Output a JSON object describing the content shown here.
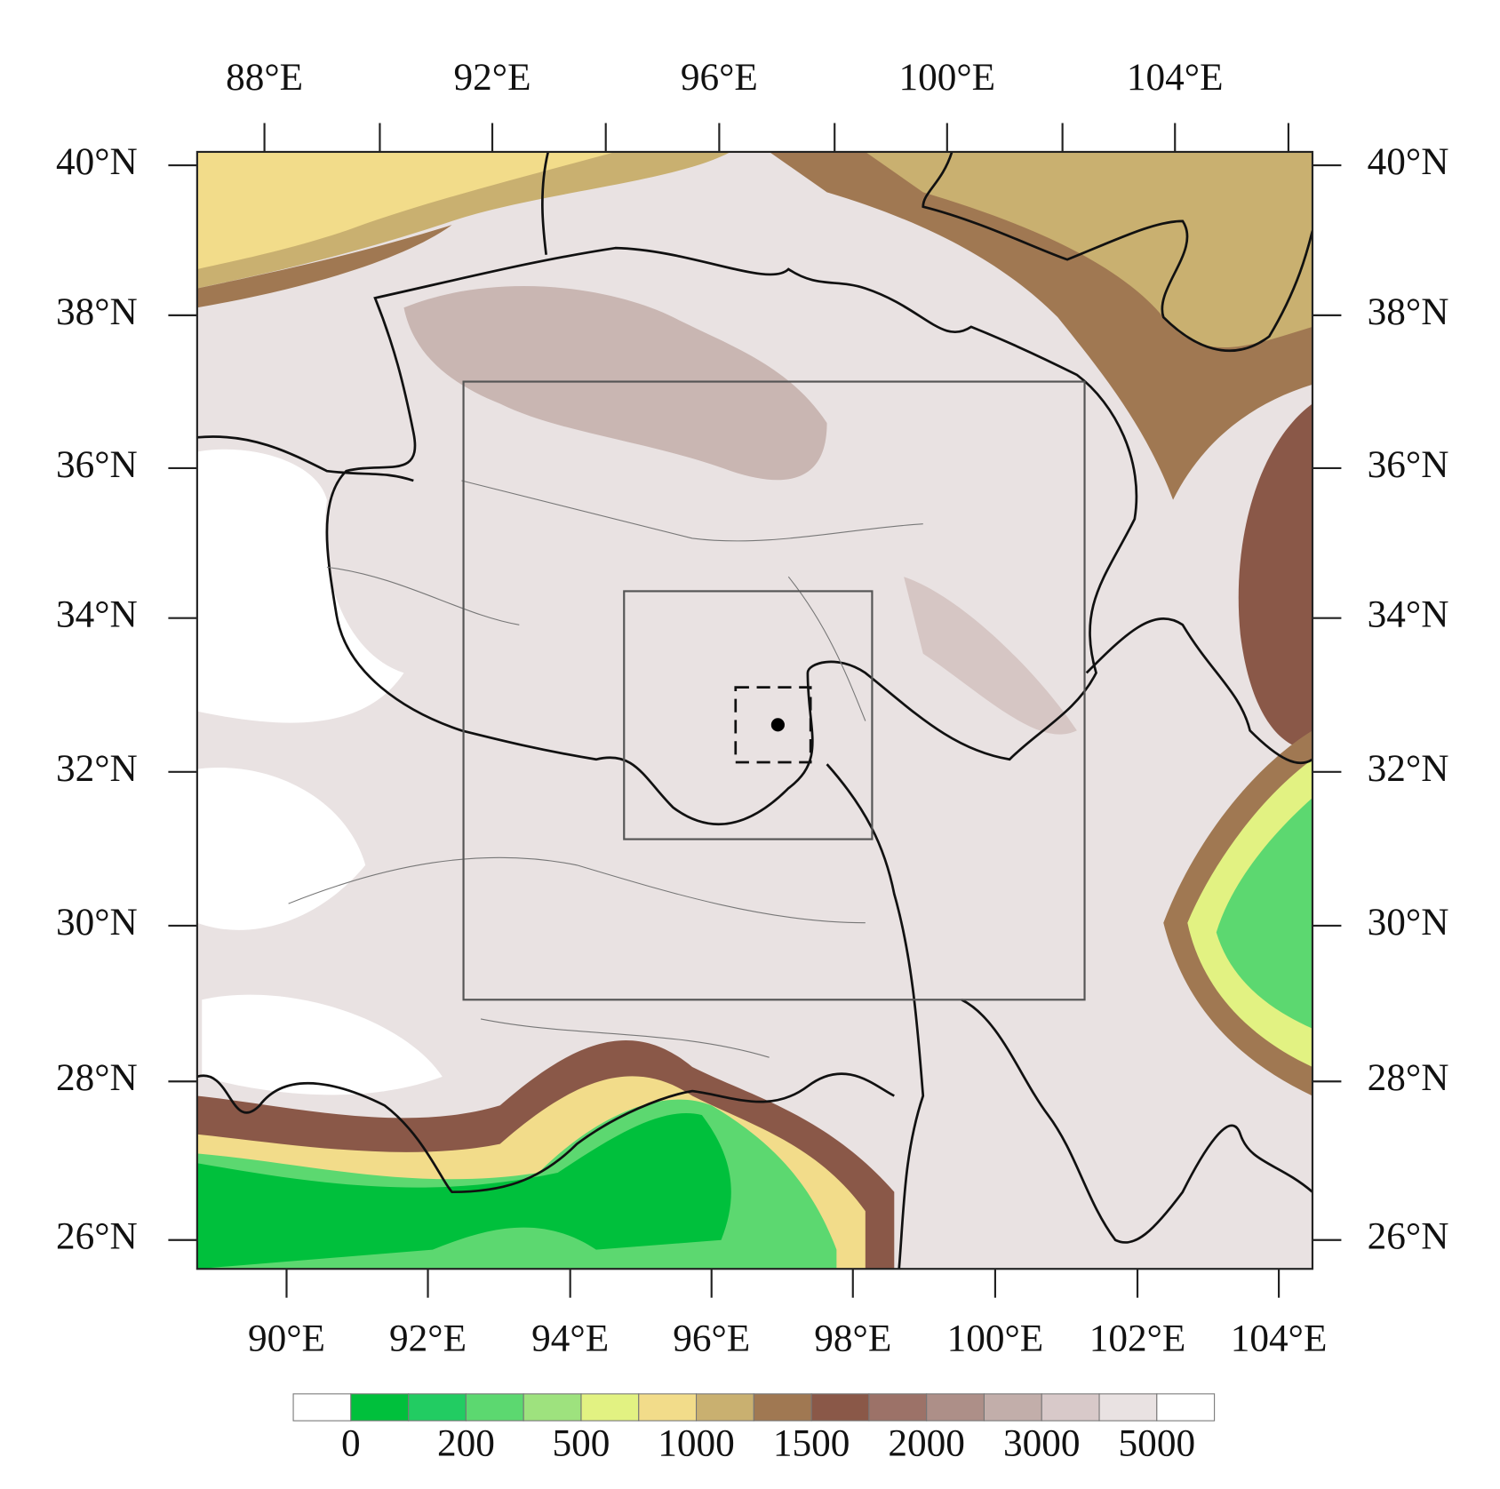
{
  "map": {
    "top_labels": [
      "88°E",
      "92°E",
      "96°E",
      "100°E",
      "104°E"
    ],
    "bottom_labels": [
      "90°E",
      "92°E",
      "94°E",
      "96°E",
      "98°E",
      "100°E",
      "102°E",
      "104°E"
    ],
    "left_labels": [
      "40°N",
      "38°N",
      "36°N",
      "34°N",
      "32°N",
      "30°N",
      "28°N",
      "26°N"
    ],
    "right_labels": [
      "40°N",
      "38°N",
      "36°N",
      "34°N",
      "32°N",
      "30°N",
      "28°N",
      "26°N"
    ],
    "colorbar": {
      "colors": [
        "#ffffff",
        "#00c03c",
        "#22cc62",
        "#5cd870",
        "#9ee27e",
        "#e2f282",
        "#f2dc8a",
        "#c9b070",
        "#a07852",
        "#8a5848",
        "#9c7268",
        "#ad8f88",
        "#c2aeaa",
        "#d8c9c9",
        "#e9e2e2",
        "#ffffff"
      ],
      "labels": [
        "0",
        "200",
        "500",
        "1000",
        "1500",
        "2000",
        "3000",
        "5000"
      ]
    }
  }
}
